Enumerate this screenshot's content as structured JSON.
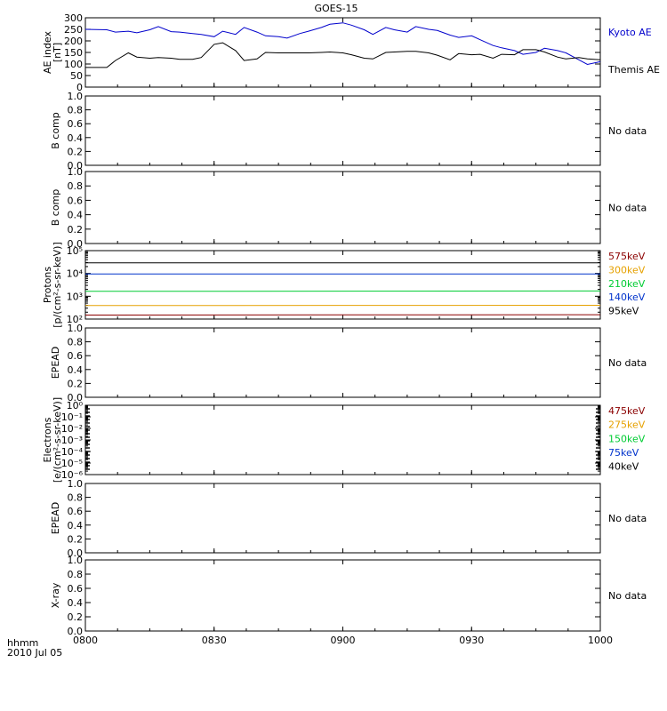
{
  "title": "GOES-15",
  "footer": {
    "time_label": "hhmm",
    "date_label": "2010 Jul 05"
  },
  "x_axis": {
    "ticks": [
      "0800",
      "0830",
      "0900",
      "0930",
      "1000"
    ],
    "range_minutes": [
      480,
      600
    ]
  },
  "chart_data": [
    {
      "id": "ae",
      "type": "line",
      "ylabel": [
        "AE index",
        "[nT]"
      ],
      "ylim": [
        0,
        300
      ],
      "yticks": [
        "0",
        "50",
        "100",
        "150",
        "200",
        "250",
        "300"
      ],
      "x_unit": "minutes since 00:00 UT",
      "series": [
        {
          "name": "Kyoto AE",
          "color": "#0000cc",
          "x": [
            480,
            485,
            487,
            490,
            492,
            495,
            497,
            500,
            502,
            505,
            507,
            510,
            512,
            515,
            517,
            520,
            522,
            525,
            527,
            530,
            532,
            535,
            537,
            540,
            542,
            545,
            547,
            550,
            552,
            555,
            557,
            560,
            562,
            565,
            567,
            570,
            572,
            575,
            577,
            580,
            582,
            585,
            587,
            590,
            592,
            595,
            597,
            600
          ],
          "y": [
            250,
            248,
            238,
            242,
            235,
            248,
            262,
            240,
            238,
            232,
            228,
            218,
            242,
            228,
            258,
            238,
            222,
            218,
            212,
            232,
            242,
            258,
            272,
            278,
            268,
            248,
            228,
            258,
            248,
            238,
            262,
            250,
            245,
            225,
            215,
            222,
            205,
            180,
            170,
            158,
            142,
            150,
            168,
            158,
            148,
            118,
            98,
            110
          ]
        },
        {
          "name": "Themis AE",
          "color": "#000000",
          "x": [
            480,
            482,
            485,
            487,
            490,
            492,
            495,
            497,
            500,
            502,
            505,
            507,
            510,
            512,
            515,
            517,
            520,
            522,
            525,
            527,
            530,
            532,
            535,
            537,
            540,
            542,
            545,
            547,
            550,
            552,
            555,
            557,
            560,
            562,
            565,
            567,
            570,
            572,
            575,
            577,
            580,
            582,
            585,
            587,
            590,
            592,
            595,
            597,
            600
          ],
          "y": [
            85,
            85,
            85,
            115,
            148,
            130,
            125,
            128,
            125,
            120,
            120,
            128,
            185,
            192,
            158,
            115,
            122,
            150,
            148,
            148,
            148,
            148,
            150,
            152,
            148,
            140,
            125,
            122,
            150,
            152,
            155,
            155,
            148,
            138,
            118,
            145,
            140,
            142,
            125,
            142,
            140,
            162,
            162,
            152,
            130,
            122,
            128,
            122,
            118
          ]
        }
      ]
    },
    {
      "id": "bcomp1",
      "type": "line",
      "ylabel": [
        "B comp"
      ],
      "ylim": [
        0,
        1
      ],
      "yticks": [
        "0.0",
        "0.2",
        "0.4",
        "0.6",
        "0.8",
        "1.0"
      ],
      "note": "No data"
    },
    {
      "id": "bcomp2",
      "type": "line",
      "ylabel": [
        "B comp"
      ],
      "ylim": [
        0,
        1
      ],
      "yticks": [
        "0.0",
        "0.2",
        "0.4",
        "0.6",
        "0.8",
        "1.0"
      ],
      "note": "No data"
    },
    {
      "id": "protons",
      "type": "line",
      "log_scale": true,
      "ylabel": [
        "Protons",
        "[p/(cm²-s-sr-keV)]"
      ],
      "ylim": [
        100,
        100000
      ],
      "yticks": [
        "10²",
        "10³",
        "10⁴",
        "10⁵"
      ],
      "series": [
        {
          "name": "575keV",
          "color": "#8b0000",
          "x": [
            480,
            600
          ],
          "y": [
            150,
            155
          ]
        },
        {
          "name": "300keV",
          "color": "#e6a100",
          "x": [
            480,
            600
          ],
          "y": [
            390,
            400
          ]
        },
        {
          "name": "210keV",
          "color": "#00cc33",
          "x": [
            480,
            600
          ],
          "y": [
            1650,
            1700
          ]
        },
        {
          "name": "140keV",
          "color": "#0033cc",
          "x": [
            480,
            600
          ],
          "y": [
            9500,
            9500
          ]
        },
        {
          "name": "95keV",
          "color": "#000000",
          "x": [
            480,
            600
          ],
          "y": [
            29000,
            29000
          ]
        }
      ]
    },
    {
      "id": "epead1",
      "type": "line",
      "ylabel": [
        "EPEAD"
      ],
      "ylim": [
        0,
        1
      ],
      "yticks": [
        "0.0",
        "0.2",
        "0.4",
        "0.6",
        "0.8",
        "1.0"
      ],
      "note": "No data"
    },
    {
      "id": "electrons",
      "type": "line",
      "log_scale": true,
      "ylabel": [
        "Electrons",
        "[e/(cm²-s-sr-keV)]"
      ],
      "ylim": [
        1e-06,
        1
      ],
      "yticks": [
        "10⁻⁶",
        "10⁻⁵",
        "10⁻⁴",
        "10⁻³",
        "10⁻²",
        "10⁻¹",
        "10⁰"
      ],
      "series": [
        {
          "name": "475keV",
          "color": "#8b0000"
        },
        {
          "name": "275keV",
          "color": "#e6a100"
        },
        {
          "name": "150keV",
          "color": "#00cc33"
        },
        {
          "name": "75keV",
          "color": "#0033cc"
        },
        {
          "name": "40keV",
          "color": "#000000"
        }
      ]
    },
    {
      "id": "epead2",
      "type": "line",
      "ylabel": [
        "EPEAD"
      ],
      "ylim": [
        0,
        1
      ],
      "yticks": [
        "0.0",
        "0.2",
        "0.4",
        "0.6",
        "0.8",
        "1.0"
      ],
      "note": "No data"
    },
    {
      "id": "xray",
      "type": "line",
      "ylabel": [
        "X-ray"
      ],
      "ylim": [
        0,
        1
      ],
      "yticks": [
        "0.0",
        "0.2",
        "0.4",
        "0.6",
        "0.8",
        "1.0"
      ],
      "note": "No data"
    }
  ]
}
